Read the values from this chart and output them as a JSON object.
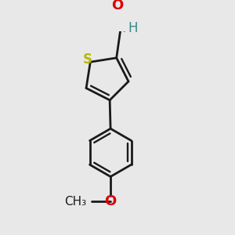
{
  "background_color": "#e8e8e8",
  "bond_color": "#1a1a1a",
  "bond_width": 2.0,
  "S_color": "#b8b800",
  "O_color": "#dd0000",
  "H_color": "#3a8888",
  "CH3_color": "#1a1a1a",
  "figsize": [
    3.0,
    3.0
  ],
  "dpi": 100,
  "xlim": [
    -0.7,
    0.9
  ],
  "ylim": [
    -1.5,
    1.2
  ]
}
